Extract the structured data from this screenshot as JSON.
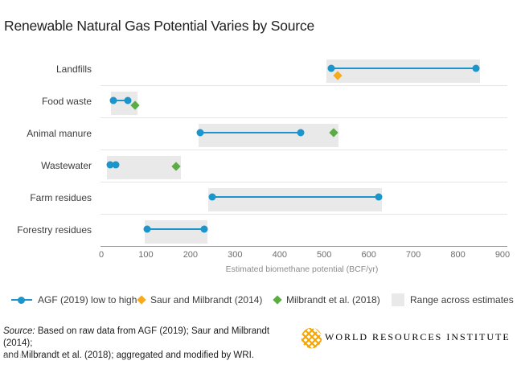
{
  "colors": {
    "agf_blue": "#1b95cc",
    "saur_orange": "#F6AA1C",
    "milbrandt_green": "#5BAC43",
    "band_gray": "#e9e9e9"
  },
  "chart_data": {
    "type": "scatter",
    "subtype": "horizontal-dot-range",
    "title": "Renewable Natural Gas Potential Varies by Source",
    "xlabel": "Estimated biomethane potential (BCF/yr)",
    "xlim": [
      0,
      900
    ],
    "xticks": [
      0,
      100,
      200,
      300,
      400,
      500,
      600,
      700,
      800,
      900
    ],
    "grid": false,
    "legend_position": "bottom",
    "rows": [
      {
        "label": "Landfills",
        "agf_low": 515,
        "agf_high": 840,
        "saur": 530,
        "band": [
          505,
          850
        ],
        "saur_dy": 9
      },
      {
        "label": "Food waste",
        "agf_low": 27,
        "agf_high": 60,
        "milbrandt": 75,
        "band": [
          22,
          82
        ],
        "milbrandt_dy": 6
      },
      {
        "label": "Animal manure",
        "agf_low": 222,
        "agf_high": 448,
        "milbrandt": 522,
        "band": [
          218,
          532
        ],
        "milbrandt_dy": 0
      },
      {
        "label": "Wastewater",
        "agf_low": 20,
        "agf_high": 32,
        "milbrandt": 168,
        "band": [
          13,
          178
        ],
        "milbrandt_dy": 2
      },
      {
        "label": "Farm residues",
        "agf_low": 248,
        "agf_high": 622,
        "band": [
          240,
          630
        ]
      },
      {
        "label": "Forestry residues",
        "agf_low": 103,
        "agf_high": 230,
        "band": [
          97,
          238
        ]
      }
    ]
  },
  "legend": [
    {
      "marker": "agf-line-dot-marker",
      "label": "AGF (2019) low to high"
    },
    {
      "marker": "orange-diamond-marker",
      "label": "Saur and Milbrandt (2014)"
    },
    {
      "marker": "green-diamond-marker",
      "label": "Milbrandt et al. (2018)"
    },
    {
      "marker": "gray-band-marker",
      "label": "Range across estimates"
    }
  ],
  "footer": {
    "source_label": "Source:",
    "source_line1": " Based on raw data from AGF (2019); Saur and Milbrandt (2014);",
    "source_line2": "and Milbrandt et al. (2018); aggregated and modified by WRI.",
    "code": "20.12.14",
    "logo_text": "WORLD RESOURCES INSTITUTE"
  }
}
